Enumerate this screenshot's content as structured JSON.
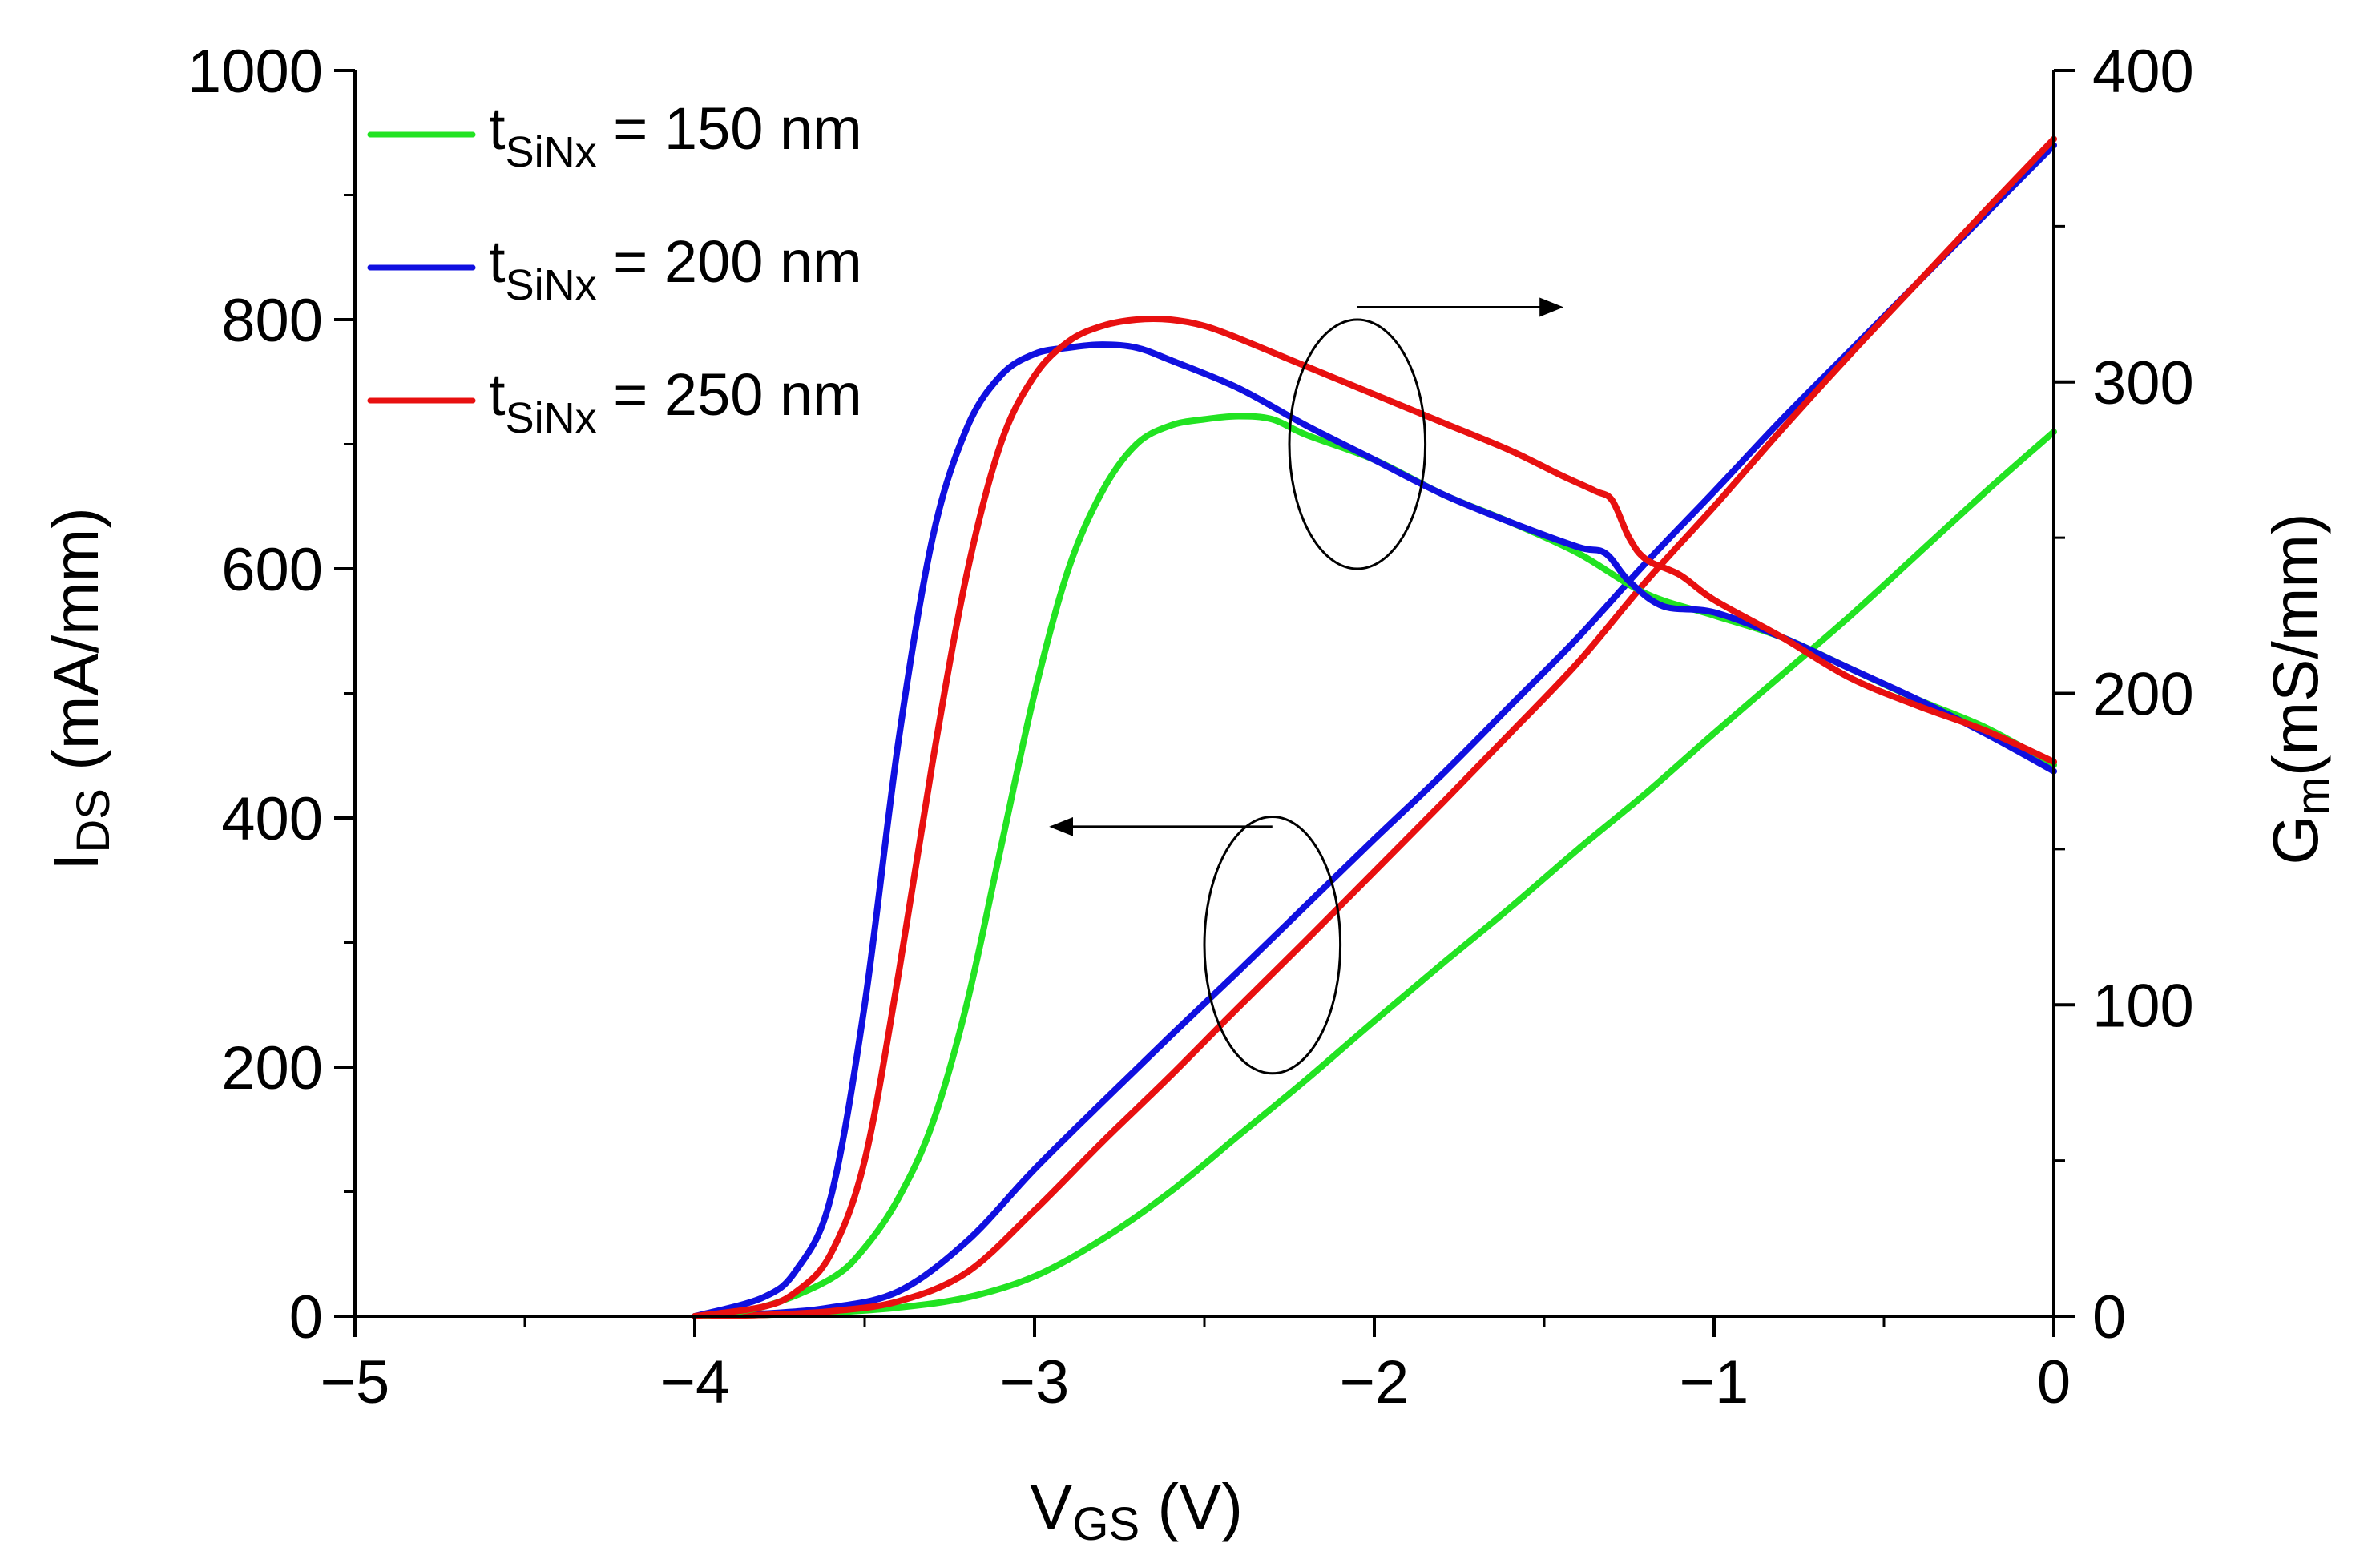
{
  "chart_data": {
    "type": "line",
    "x_axis": {
      "label_main": "V",
      "label_sub": "GS",
      "label_unit": " (V)",
      "range": [
        -5,
        0
      ],
      "ticks": [
        -5,
        -4,
        -3,
        -2,
        -1,
        0
      ],
      "tick_labels": [
        "−5",
        "−4",
        "−3",
        "−2",
        "−1",
        "0"
      ]
    },
    "y_left": {
      "label_main": "I",
      "label_sub": "DS",
      "label_unit": " (mA/mm)",
      "range": [
        0,
        1000
      ],
      "ticks": [
        0,
        200,
        400,
        600,
        800,
        1000
      ],
      "tick_labels": [
        "0",
        "200",
        "400",
        "600",
        "800",
        "1000"
      ]
    },
    "y_right": {
      "label_main": "G",
      "label_sub": "m",
      "label_unit": "(mS/mm)",
      "range": [
        0,
        400
      ],
      "ticks": [
        0,
        100,
        200,
        300,
        400
      ],
      "tick_labels": [
        "0",
        "100",
        "200",
        "300",
        "400"
      ]
    },
    "legend": {
      "position": "top-left",
      "entries": [
        {
          "prefix": "t",
          "sub": "SiNx",
          "suffix": " = 150 nm",
          "color": "#22e322"
        },
        {
          "prefix": "t",
          "sub": "SiNx",
          "suffix": " = 200 nm",
          "color": "#1010e0"
        },
        {
          "prefix": "t",
          "sub": "SiNx",
          "suffix": " = 250 nm",
          "color": "#e81010"
        }
      ]
    },
    "annotations": [
      {
        "kind": "ellipse-arrow",
        "target": "y_right",
        "center": [
          -2.05,
          700
        ],
        "radius": [
          0.2,
          100
        ],
        "arrow_from": [
          -2.05,
          810
        ],
        "arrow_to": [
          -1.45,
          810
        ]
      },
      {
        "kind": "ellipse-arrow",
        "target": "y_left",
        "center": [
          -2.3,
          298
        ],
        "radius": [
          0.2,
          103
        ],
        "arrow_from": [
          -2.3,
          393
        ],
        "arrow_to": [
          -2.95,
          393
        ]
      }
    ],
    "series": [
      {
        "name": "IDS 150 nm",
        "axis": "left",
        "color": "#22e322",
        "x": [
          -4.0,
          -3.8,
          -3.6,
          -3.4,
          -3.2,
          -3.0,
          -2.8,
          -2.6,
          -2.4,
          -2.2,
          -2.0,
          -1.8,
          -1.6,
          -1.4,
          -1.2,
          -1.0,
          -0.8,
          -0.6,
          -0.4,
          -0.2,
          0.0
        ],
        "y": [
          0,
          1,
          3,
          7,
          15,
          32,
          62,
          100,
          145,
          190,
          237,
          283,
          328,
          375,
          420,
          468,
          515,
          562,
          612,
          662,
          710
        ]
      },
      {
        "name": "IDS 200 nm",
        "axis": "left",
        "color": "#1010e0",
        "x": [
          -4.0,
          -3.8,
          -3.6,
          -3.4,
          -3.2,
          -3.0,
          -2.8,
          -2.6,
          -2.4,
          -2.2,
          -2.0,
          -1.8,
          -1.6,
          -1.4,
          -1.2,
          -1.0,
          -0.8,
          -0.6,
          -0.4,
          -0.2,
          0.0
        ],
        "y": [
          0,
          2,
          7,
          20,
          60,
          118,
          172,
          225,
          277,
          330,
          383,
          435,
          490,
          545,
          605,
          662,
          720,
          775,
          830,
          885,
          940
        ]
      },
      {
        "name": "IDS 250 nm",
        "axis": "left",
        "color": "#e81010",
        "x": [
          -4.0,
          -3.8,
          -3.6,
          -3.4,
          -3.2,
          -3.0,
          -2.8,
          -2.6,
          -2.4,
          -2.2,
          -2.0,
          -1.8,
          -1.6,
          -1.4,
          -1.2,
          -1.0,
          -0.8,
          -0.6,
          -0.4,
          -0.2,
          0.0
        ],
        "y": [
          0,
          1,
          4,
          12,
          35,
          85,
          140,
          193,
          248,
          302,
          357,
          412,
          468,
          525,
          590,
          650,
          712,
          772,
          830,
          888,
          945
        ]
      },
      {
        "name": "Gm 150 nm",
        "axis": "right",
        "color": "#22e322",
        "x": [
          -4.0,
          -3.8,
          -3.6,
          -3.5,
          -3.4,
          -3.3,
          -3.2,
          -3.1,
          -3.0,
          -2.9,
          -2.8,
          -2.7,
          -2.6,
          -2.5,
          -2.4,
          -2.3,
          -2.2,
          -2.0,
          -1.8,
          -1.6,
          -1.4,
          -1.2,
          -1.0,
          -0.8,
          -0.6,
          -0.4,
          -0.2,
          0.0
        ],
        "y": [
          0,
          3,
          12,
          22,
          38,
          62,
          100,
          150,
          200,
          240,
          265,
          280,
          286,
          288,
          289,
          288,
          283,
          275,
          264,
          255,
          245,
          232,
          225,
          218,
          208,
          198,
          189,
          177
        ]
      },
      {
        "name": "Gm 200 nm",
        "axis": "right",
        "color": "#1010e0",
        "x": [
          -4.0,
          -3.8,
          -3.7,
          -3.6,
          -3.5,
          -3.4,
          -3.3,
          -3.2,
          -3.1,
          -3.0,
          -2.9,
          -2.8,
          -2.7,
          -2.6,
          -2.4,
          -2.2,
          -2.0,
          -1.8,
          -1.6,
          -1.4,
          -1.32,
          -1.25,
          -1.15,
          -1.0,
          -0.8,
          -0.6,
          -0.4,
          -0.2,
          0.0
        ],
        "y": [
          0,
          6,
          15,
          38,
          100,
          185,
          250,
          285,
          302,
          309,
          311,
          312,
          311,
          307,
          298,
          286,
          275,
          264,
          255,
          247,
          245,
          236,
          228,
          226,
          218,
          208,
          198,
          187,
          175
        ]
      },
      {
        "name": "Gm 250 nm",
        "axis": "right",
        "color": "#e81010",
        "x": [
          -4.0,
          -3.8,
          -3.7,
          -3.6,
          -3.5,
          -3.4,
          -3.3,
          -3.2,
          -3.1,
          -3.0,
          -2.9,
          -2.8,
          -2.7,
          -2.6,
          -2.5,
          -2.4,
          -2.2,
          -2.0,
          -1.8,
          -1.6,
          -1.45,
          -1.35,
          -1.3,
          -1.25,
          -1.2,
          -1.1,
          -1.0,
          -0.8,
          -0.6,
          -0.4,
          -0.2,
          0.0
        ],
        "y": [
          0,
          3,
          8,
          20,
          50,
          110,
          178,
          238,
          280,
          302,
          313,
          318,
          320,
          320,
          318,
          314,
          305,
          296,
          287,
          278,
          270,
          265,
          262,
          250,
          243,
          238,
          230,
          218,
          205,
          196,
          188,
          178
        ]
      }
    ]
  }
}
